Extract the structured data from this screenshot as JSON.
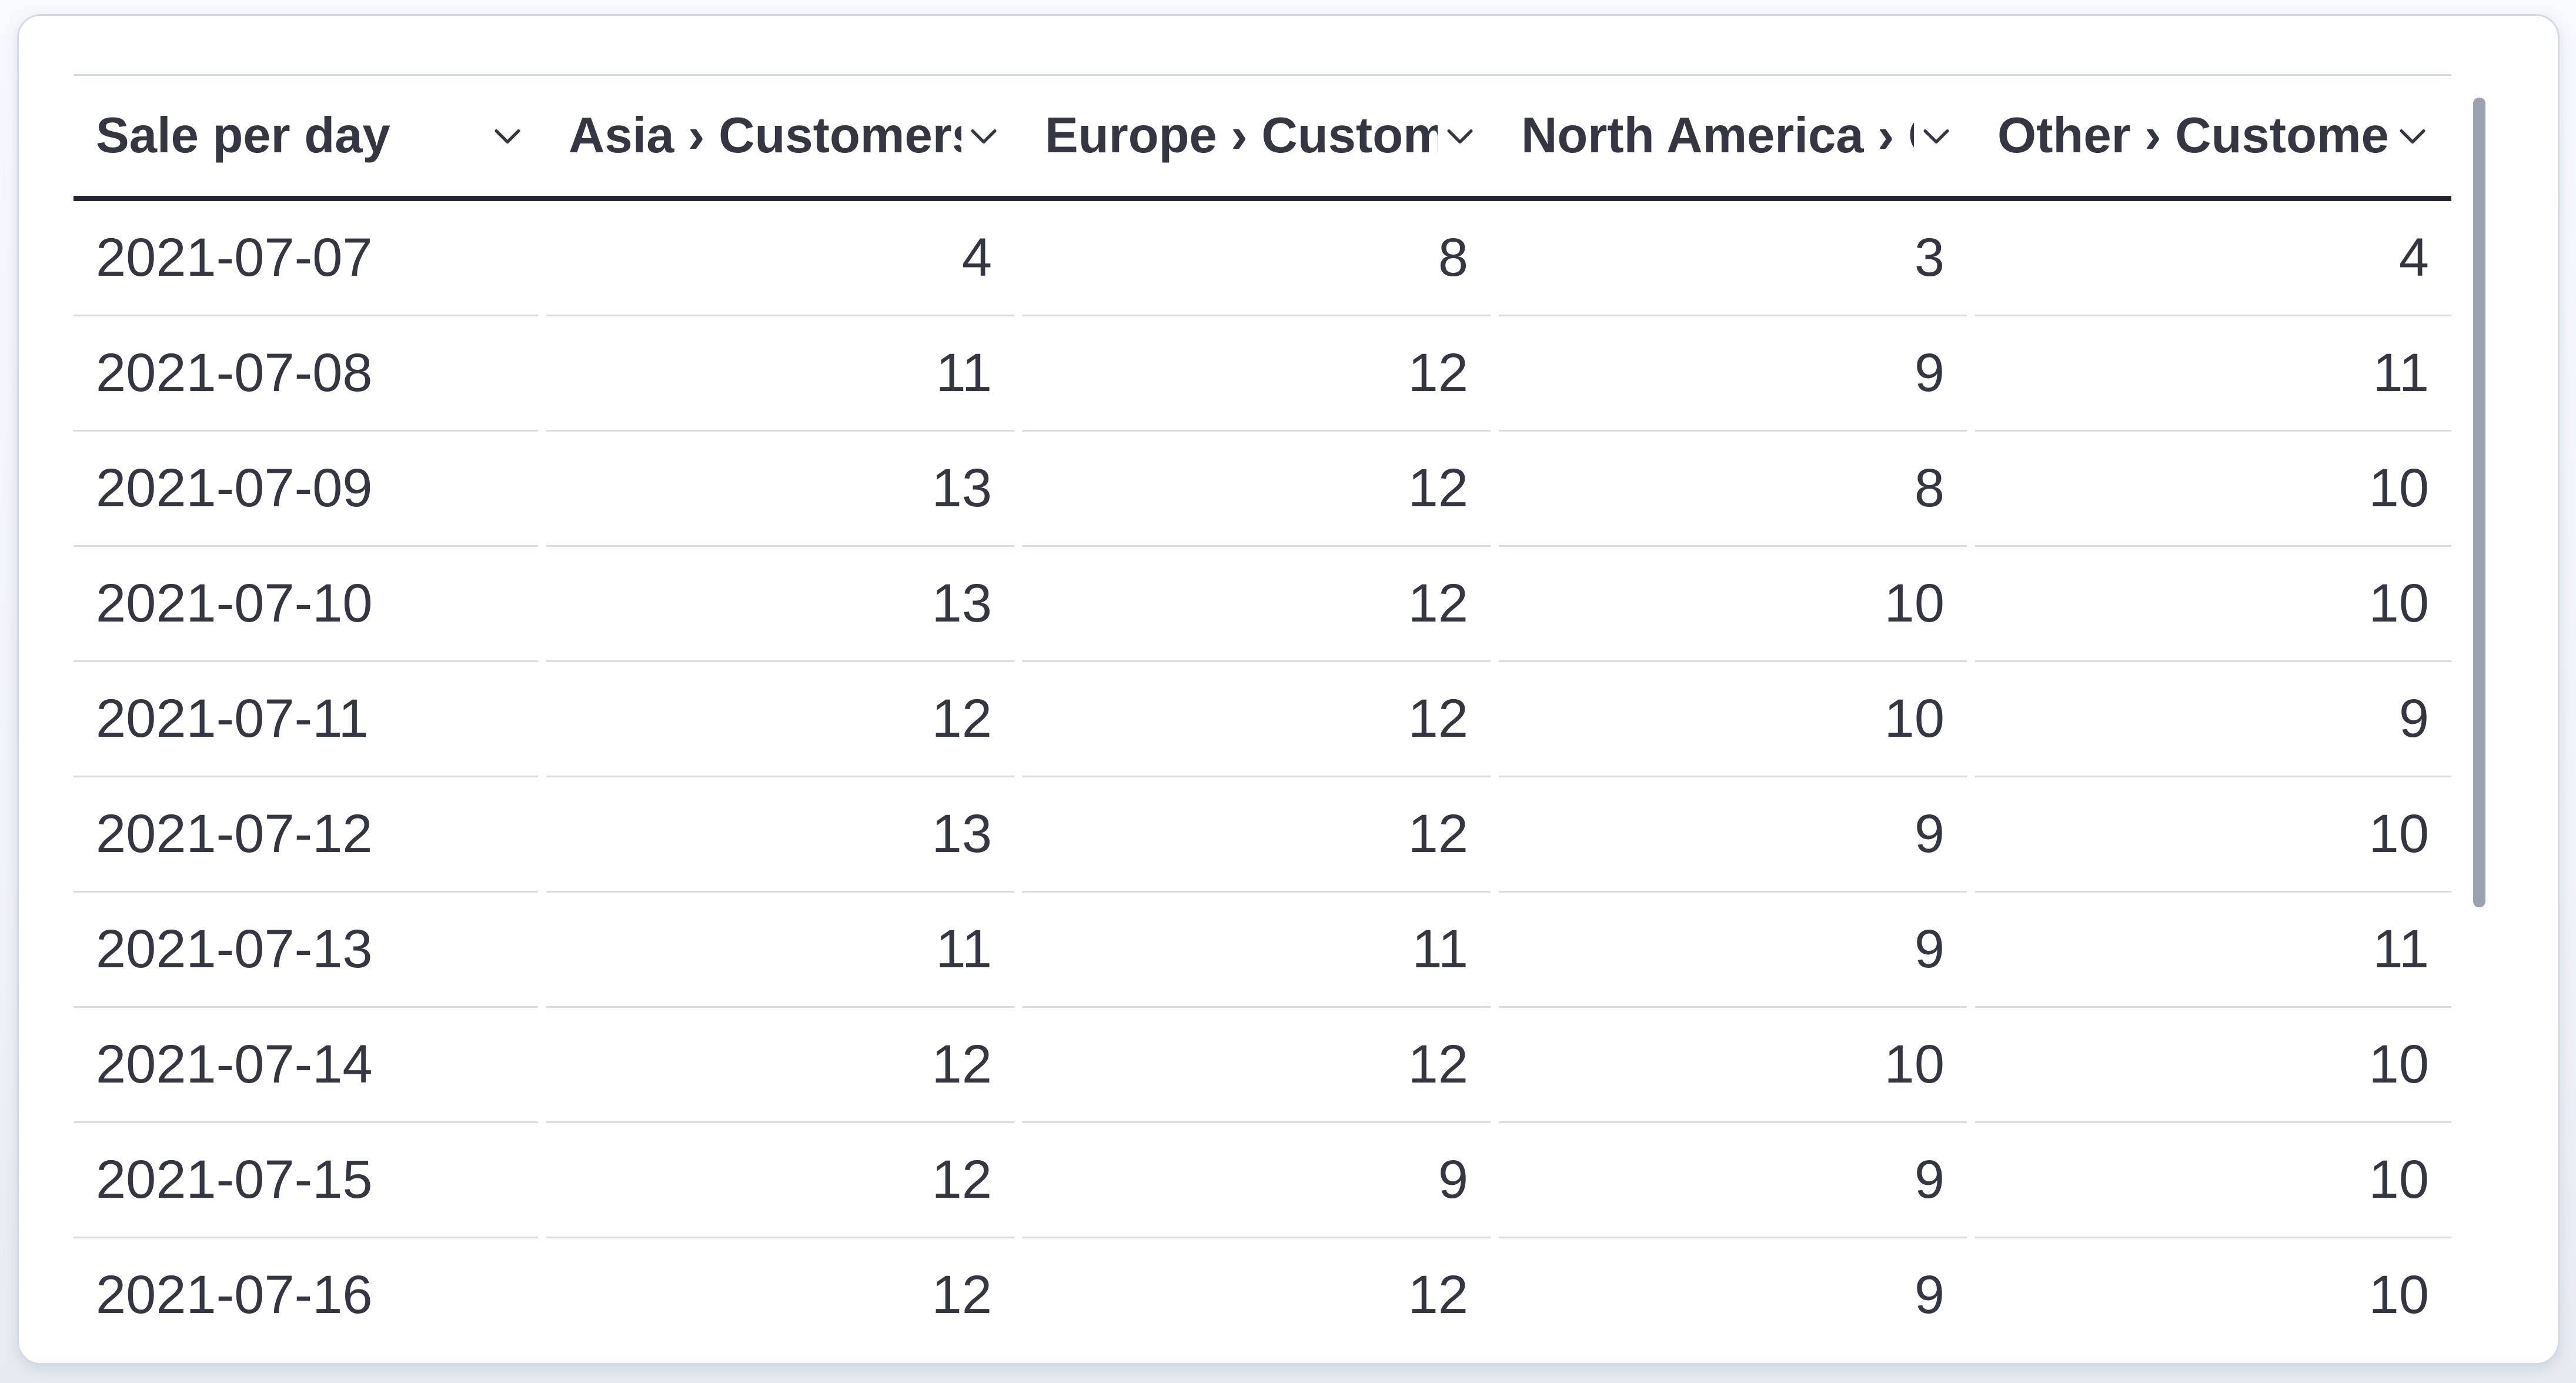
{
  "table": {
    "columns": [
      {
        "label": "Sale per day",
        "align": "left",
        "sortable": true
      },
      {
        "label": "Asia › Customers",
        "align": "right",
        "sortable": true
      },
      {
        "label": "Europe › Customers",
        "align": "right",
        "sortable": true
      },
      {
        "label": "North America › Customers",
        "align": "right",
        "sortable": true
      },
      {
        "label": "Other › Customers",
        "align": "right",
        "sortable": true
      }
    ],
    "rows": [
      [
        "2021-07-07",
        "4",
        "8",
        "3",
        "4"
      ],
      [
        "2021-07-08",
        "11",
        "12",
        "9",
        "11"
      ],
      [
        "2021-07-09",
        "13",
        "12",
        "8",
        "10"
      ],
      [
        "2021-07-10",
        "13",
        "12",
        "10",
        "10"
      ],
      [
        "2021-07-11",
        "12",
        "12",
        "10",
        "9"
      ],
      [
        "2021-07-12",
        "13",
        "12",
        "9",
        "10"
      ],
      [
        "2021-07-13",
        "11",
        "11",
        "9",
        "11"
      ],
      [
        "2021-07-14",
        "12",
        "12",
        "10",
        "10"
      ],
      [
        "2021-07-15",
        "12",
        "9",
        "9",
        "10"
      ],
      [
        "2021-07-16",
        "12",
        "12",
        "9",
        "10"
      ]
    ]
  },
  "scrollbar": {
    "orientation": "vertical",
    "thumb_visible": true
  },
  "colors": {
    "text": "#343741",
    "header_underline": "#262831",
    "row_divider": "#d6dde8",
    "card_border": "#d3dae6",
    "card_background": "#ffffff",
    "scrollbar_thumb": "#9aa2b0"
  }
}
